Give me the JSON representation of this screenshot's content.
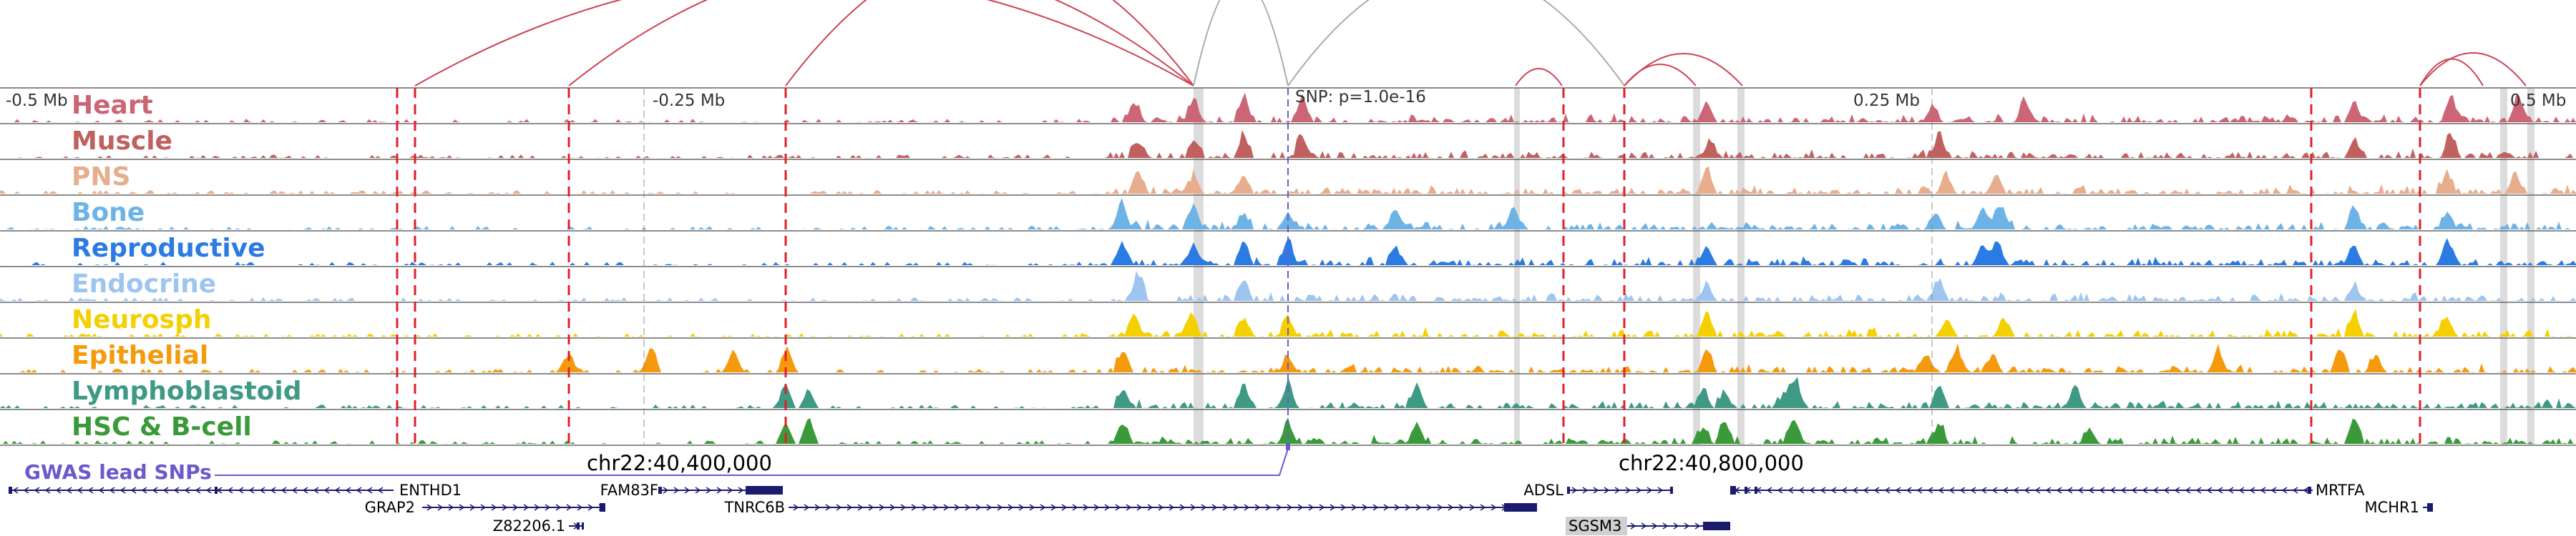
{
  "scale": {
    "left": "-0.5 Mb",
    "mid_left": "-0.25 Mb",
    "mid_right": "0.25 Mb",
    "right": "0.5 Mb"
  },
  "snp_label": "SNP: p=1.0e-16",
  "coords": {
    "first": "chr22:40,400,000",
    "second": "chr22:40,800,000"
  },
  "gwas_label": "GWAS lead SNPs",
  "colors": {
    "arc_red": "#cc4455",
    "arc_gray": "#aaaaaa",
    "boundary": "#e0202a",
    "snp_line": "#888888",
    "gene": "#1a1a6e",
    "gwas": "#6a5acd"
  },
  "tracks": [
    {
      "name": "Heart",
      "color": "#cc6677"
    },
    {
      "name": "Muscle",
      "color": "#c0605f"
    },
    {
      "name": "PNS",
      "color": "#e8ad8c"
    },
    {
      "name": "Bone",
      "color": "#6eb3e6"
    },
    {
      "name": "Reproductive",
      "color": "#2b7be4"
    },
    {
      "name": "Endocrine",
      "color": "#9ec5f0"
    },
    {
      "name": "Neurosph",
      "color": "#f5d000"
    },
    {
      "name": "Epithelial",
      "color": "#f59a0c"
    },
    {
      "name": "Lymphoblastoid",
      "color": "#3e9985"
    },
    {
      "name": "HSC & B-cell",
      "color": "#3a9a3a"
    }
  ],
  "genes": [
    {
      "name": "ENTHD1"
    },
    {
      "name": "GRAP2"
    },
    {
      "name": "Z82206.1"
    },
    {
      "name": "FAM83F"
    },
    {
      "name": "TNRC6B"
    },
    {
      "name": "ADSL"
    },
    {
      "name": "SGSM3"
    },
    {
      "name": "MRTFA"
    },
    {
      "name": "MCHR1"
    }
  ]
}
